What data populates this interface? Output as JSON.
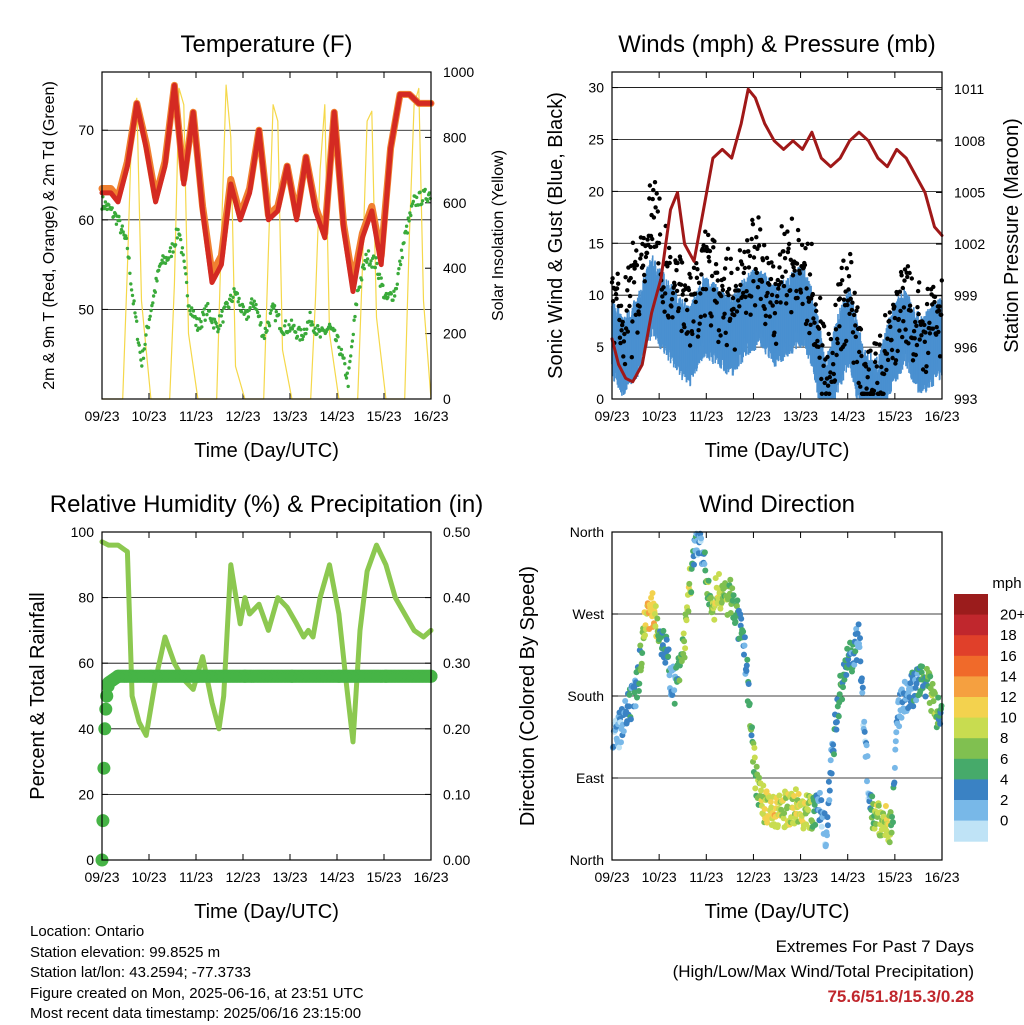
{
  "info": {
    "location": "Location: Ontario",
    "elevation": "Station elevation: 99.8525 m",
    "latlon": "Station lat/lon: 43.2594; -77.3733",
    "created": "Figure created on Mon, 2025-06-16, at 23:51 UTC",
    "recent": "Most recent data timestamp: 2025/06/16 23:15:00"
  },
  "extremes": {
    "title": "Extremes For Past 7 Days",
    "subtitle": "(High/Low/Max Wind/Total Precipitation)",
    "values": "75.6/51.8/15.3/0.28"
  },
  "chart_data": [
    {
      "type": "line",
      "title": "Temperature (F)",
      "xlabel": "Time (Day/UTC)",
      "ylabel": "2m & 9m T (Red, Orange) & 2m Td (Green)",
      "ylabel_right": "Solar Insolation (Yellow)",
      "x_ticks": [
        "09/23",
        "10/23",
        "11/23",
        "12/23",
        "13/23",
        "14/23",
        "15/23",
        "16/23"
      ],
      "y_ticks": [
        50,
        60,
        70
      ],
      "y_ticks_right": [
        0,
        200,
        400,
        600,
        800,
        1000
      ],
      "xlim": [
        9.96,
        16.96
      ],
      "ylim": [
        40,
        76.5
      ],
      "ylim_right": [
        0,
        1000
      ],
      "grid": true,
      "colors": {
        "t2m": "#d42a22",
        "t9m": "#f08030",
        "td": "#3aaa3a",
        "solar": "#f5d84a"
      },
      "series": [
        {
          "key": "t2m",
          "x": [
            9.96,
            10.15,
            10.3,
            10.5,
            10.7,
            10.9,
            11.1,
            11.3,
            11.5,
            11.7,
            11.9,
            12.1,
            12.3,
            12.5,
            12.7,
            12.9,
            13.1,
            13.3,
            13.5,
            13.7,
            13.9,
            14.1,
            14.3,
            14.5,
            14.7,
            14.9,
            15.1,
            15.3,
            15.5,
            15.7,
            15.9,
            16.1,
            16.3,
            16.5,
            16.7,
            16.96
          ],
          "y": [
            63,
            63,
            62,
            66,
            73,
            68,
            62,
            66,
            75,
            64,
            72,
            61,
            53,
            55,
            64,
            60,
            63,
            70,
            60,
            61,
            66,
            60,
            67,
            61,
            58,
            72,
            59,
            52,
            58,
            61,
            55,
            68,
            74,
            74,
            73,
            73
          ]
        },
        {
          "key": "t9m",
          "x": [
            9.96,
            10.15,
            10.3,
            10.5,
            10.7,
            10.9,
            11.1,
            11.3,
            11.5,
            11.7,
            11.9,
            12.1,
            12.3,
            12.5,
            12.7,
            12.9,
            13.1,
            13.3,
            13.5,
            13.7,
            13.9,
            14.1,
            14.3,
            14.5,
            14.7,
            14.9,
            15.1,
            15.3,
            15.5,
            15.7,
            15.9,
            16.1,
            16.3,
            16.5,
            16.7,
            16.96
          ],
          "y": [
            63.5,
            63.5,
            62.5,
            66.5,
            73,
            68.5,
            62.5,
            66.5,
            75,
            64.5,
            72,
            61.5,
            54,
            56,
            64.5,
            60.5,
            63.5,
            70,
            60.5,
            61.5,
            66,
            60.5,
            67,
            61.5,
            58.5,
            72,
            59.5,
            53,
            58.5,
            61.5,
            56,
            68,
            74,
            74,
            73,
            73
          ]
        },
        {
          "key": "td",
          "x": [
            9.96,
            10.15,
            10.3,
            10.5,
            10.6,
            10.8,
            11.0,
            11.2,
            11.4,
            11.6,
            11.8,
            12.0,
            12.2,
            12.4,
            12.6,
            12.8,
            13.0,
            13.2,
            13.4,
            13.6,
            13.8,
            14.0,
            14.2,
            14.4,
            14.6,
            14.8,
            15.0,
            15.2,
            15.4,
            15.6,
            15.8,
            16.0,
            16.2,
            16.4,
            16.6,
            16.96
          ],
          "y": [
            62,
            61,
            60,
            57,
            52,
            44,
            50,
            55,
            56,
            59,
            51,
            48,
            50,
            48,
            50,
            52,
            49,
            51,
            47,
            50,
            48,
            48,
            47,
            49,
            47,
            48,
            46,
            42,
            52,
            56,
            55,
            51,
            52,
            58,
            62,
            63
          ]
        },
        {
          "key": "solar",
          "x": [
            9.96,
            10.4,
            10.5,
            10.6,
            10.7,
            10.8,
            11.0,
            11.4,
            11.5,
            11.6,
            11.7,
            11.8,
            12.0,
            12.4,
            12.5,
            12.6,
            12.7,
            12.8,
            13.0,
            13.4,
            13.5,
            13.6,
            13.7,
            13.8,
            14.0,
            14.4,
            14.5,
            14.6,
            14.7,
            14.8,
            15.0,
            15.4,
            15.5,
            15.6,
            15.7,
            15.8,
            16.0,
            16.4,
            16.5,
            16.6,
            16.7,
            16.8,
            16.96
          ],
          "y": [
            0,
            0,
            400,
            870,
            920,
            300,
            0,
            0,
            350,
            950,
            900,
            200,
            0,
            0,
            500,
            960,
            800,
            100,
            0,
            0,
            450,
            900,
            850,
            150,
            0,
            0,
            300,
            700,
            900,
            200,
            0,
            0,
            400,
            850,
            880,
            250,
            0,
            0,
            500,
            900,
            950,
            300,
            0
          ]
        }
      ]
    },
    {
      "type": "scatter",
      "title": "Winds (mph) & Pressure (mb)",
      "xlabel": "Time (Day/UTC)",
      "ylabel": "Sonic Wind & Gust (Blue, Black)",
      "ylabel_right": "Station Pressure (Maroon)",
      "x_ticks": [
        "09/23",
        "10/23",
        "11/23",
        "12/23",
        "13/23",
        "14/23",
        "15/23",
        "16/23"
      ],
      "y_ticks": [
        0,
        5,
        10,
        15,
        20,
        25,
        30
      ],
      "y_ticks_right": [
        993,
        996,
        999,
        1002,
        1005,
        1008,
        1011
      ],
      "xlim": [
        9.96,
        16.96
      ],
      "ylim": [
        0,
        31.5
      ],
      "ylim_right": [
        993,
        1012
      ],
      "grid": true,
      "colors": {
        "wind": "#4a90d0",
        "gust": "#000000",
        "pressure": "#a01818"
      },
      "series": [
        {
          "key": "wind_envelope",
          "x": [
            9.96,
            10.2,
            10.5,
            10.8,
            11.1,
            11.4,
            11.6,
            11.9,
            12.2,
            12.5,
            12.8,
            13.1,
            13.4,
            13.7,
            14.0,
            14.2,
            14.5,
            14.8,
            15.0,
            15.3,
            15.6,
            15.9,
            16.2,
            16.5,
            16.96
          ],
          "y": [
            8,
            6,
            8,
            12,
            10,
            8,
            7,
            10,
            9,
            8,
            10,
            11,
            9,
            10,
            11,
            9,
            2,
            7,
            9,
            3,
            2,
            7,
            9,
            6,
            8
          ]
        },
        {
          "key": "gust_envelope",
          "x": [
            9.96,
            10.2,
            10.5,
            10.8,
            11.1,
            11.4,
            11.6,
            11.9,
            12.2,
            12.5,
            12.8,
            13.1,
            13.4,
            13.7,
            14.0,
            14.2,
            14.5,
            14.8,
            15.0,
            15.3,
            15.6,
            15.9,
            16.2,
            16.5,
            16.96
          ],
          "y": [
            13,
            11,
            15,
            22,
            16,
            14,
            12,
            16,
            14,
            13,
            17,
            16,
            14,
            17,
            16,
            14,
            6,
            12,
            14,
            6,
            5,
            11,
            13,
            10,
            12
          ]
        },
        {
          "key": "pressure",
          "x": [
            9.96,
            10.1,
            10.25,
            10.4,
            10.6,
            10.8,
            11.0,
            11.2,
            11.35,
            11.5,
            11.7,
            11.9,
            12.1,
            12.3,
            12.5,
            12.7,
            12.85,
            13.0,
            13.2,
            13.4,
            13.6,
            13.8,
            14.0,
            14.2,
            14.4,
            14.6,
            14.8,
            15.0,
            15.2,
            15.4,
            15.6,
            15.8,
            16.0,
            16.2,
            16.4,
            16.6,
            16.8,
            16.96
          ],
          "y": [
            996.5,
            995,
            994.2,
            994,
            995,
            998,
            1000,
            1004,
            1005,
            1002,
            1001,
            1004,
            1007,
            1007.5,
            1007,
            1009,
            1011,
            1010.5,
            1009,
            1008,
            1007.5,
            1008,
            1007.5,
            1008.5,
            1007,
            1006.5,
            1007,
            1008,
            1008.5,
            1008,
            1007,
            1006.5,
            1007.5,
            1007,
            1006,
            1005,
            1003,
            1002.5
          ]
        }
      ]
    },
    {
      "type": "line",
      "title": "Relative Humidity (%) & Precipitation (in)",
      "xlabel": "Time (Day/UTC)",
      "ylabel": "Percent & Total Rainfall",
      "x_ticks": [
        "09/23",
        "10/23",
        "11/23",
        "12/23",
        "13/23",
        "14/23",
        "15/23",
        "16/23"
      ],
      "y_ticks": [
        0,
        20,
        40,
        60,
        80,
        100
      ],
      "y_ticks_right": [
        "0.00",
        "0.10",
        "0.20",
        "0.30",
        "0.40",
        "0.50"
      ],
      "xlim": [
        9.96,
        16.96
      ],
      "ylim": [
        0,
        100
      ],
      "ylim_right": [
        0,
        0.5
      ],
      "grid": true,
      "colors": {
        "rh": "#8cc850",
        "precip": "#46b446"
      },
      "series": [
        {
          "key": "rh",
          "x": [
            9.96,
            10.1,
            10.3,
            10.5,
            10.6,
            10.75,
            10.9,
            11.1,
            11.3,
            11.5,
            11.7,
            11.9,
            12.0,
            12.1,
            12.3,
            12.45,
            12.55,
            12.7,
            12.9,
            13.0,
            13.1,
            13.3,
            13.5,
            13.7,
            13.9,
            14.1,
            14.25,
            14.35,
            14.45,
            14.6,
            14.8,
            15.0,
            15.15,
            15.3,
            15.45,
            15.6,
            15.8,
            16.0,
            16.2,
            16.4,
            16.6,
            16.8,
            16.96
          ],
          "y": [
            97,
            96,
            96,
            94,
            50,
            42,
            38,
            55,
            68,
            60,
            55,
            52,
            57,
            62,
            48,
            40,
            50,
            90,
            72,
            80,
            75,
            78,
            70,
            80,
            77,
            72,
            68,
            70,
            68,
            80,
            90,
            75,
            55,
            36,
            70,
            88,
            96,
            90,
            80,
            75,
            70,
            68,
            70
          ]
        },
        {
          "key": "precip",
          "x": [
            9.96,
            9.98,
            10.0,
            10.02,
            10.04,
            10.06,
            10.1,
            10.3,
            11.0,
            12.0,
            13.0,
            14.0,
            15.0,
            16.0,
            16.96
          ],
          "y": [
            0,
            0.06,
            0.14,
            0.2,
            0.23,
            0.25,
            0.27,
            0.28,
            0.28,
            0.28,
            0.28,
            0.28,
            0.28,
            0.28,
            0.28
          ]
        }
      ]
    },
    {
      "type": "scatter",
      "title": "Wind Direction",
      "xlabel": "Time (Day/UTC)",
      "ylabel": "Direction (Colored By Speed)",
      "x_ticks": [
        "09/23",
        "10/23",
        "11/23",
        "12/23",
        "13/23",
        "14/23",
        "15/23",
        "16/23"
      ],
      "y_ticks": [
        "North",
        "East",
        "South",
        "West",
        "North"
      ],
      "ylim": [
        0,
        360
      ],
      "xlim": [
        9.96,
        16.96
      ],
      "grid": true,
      "legend": {
        "title": "mph",
        "position": "right",
        "labels": [
          "20+",
          "18",
          "16",
          "14",
          "12",
          "10",
          "8",
          "6",
          "4",
          "2",
          "0"
        ],
        "colors": [
          "#9b1c1c",
          "#c0272d",
          "#e0402a",
          "#f06a2a",
          "#f5a040",
          "#f3d24e",
          "#c8dc50",
          "#80c050",
          "#46aa6a",
          "#3a82c4",
          "#78b8e8",
          "#bfe3f6"
        ]
      },
      "series": [
        {
          "key": "direction",
          "x": [
            10.0,
            10.2,
            10.4,
            10.5,
            10.6,
            10.7,
            10.8,
            10.9,
            11.0,
            11.1,
            11.2,
            11.3,
            11.4,
            11.5,
            11.6,
            11.7,
            11.8,
            11.9,
            12.0,
            12.1,
            12.2,
            12.3,
            12.4,
            12.5,
            12.6,
            12.8,
            13.0,
            13.2,
            13.4,
            13.6,
            13.8,
            14.0,
            14.2,
            14.3,
            14.4,
            14.5,
            14.6,
            14.8,
            15.0,
            15.2,
            15.4,
            15.5,
            15.6,
            15.7,
            15.8,
            15.9,
            16.0,
            16.2,
            16.4,
            16.6,
            16.8,
            16.95
          ],
          "y": [
            130,
            150,
            175,
            190,
            240,
            270,
            275,
            265,
            245,
            230,
            200,
            190,
            210,
            240,
            300,
            330,
            355,
            330,
            290,
            275,
            300,
            290,
            285,
            290,
            270,
            220,
            90,
            60,
            50,
            55,
            60,
            55,
            50,
            60,
            55,
            30,
            100,
            190,
            220,
            240,
            80,
            50,
            45,
            40,
            40,
            35,
            160,
            180,
            190,
            200,
            170,
            150
          ],
          "speed": [
            2,
            3,
            4,
            5,
            8,
            12,
            14,
            10,
            6,
            5,
            3,
            4,
            6,
            8,
            10,
            4,
            2,
            3,
            8,
            9,
            10,
            9,
            8,
            7,
            6,
            4,
            8,
            10,
            12,
            9,
            10,
            11,
            8,
            4,
            3,
            2,
            4,
            6,
            5,
            3,
            2,
            8,
            10,
            8,
            12,
            6,
            2,
            3,
            4,
            6,
            8,
            5
          ]
        }
      ]
    }
  ]
}
